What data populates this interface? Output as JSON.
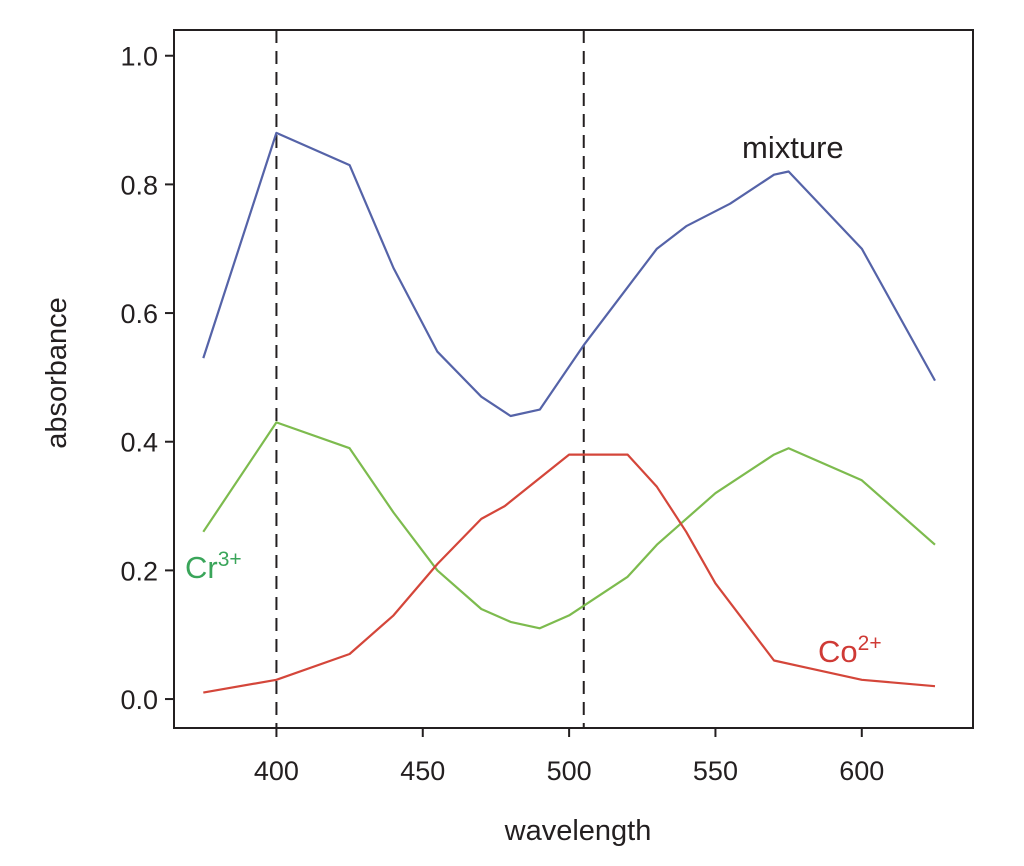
{
  "chart_data": {
    "type": "line",
    "xlabel": "wavelength",
    "ylabel": "absorbance",
    "xlim": [
      365,
      638
    ],
    "ylim": [
      -0.045,
      1.04
    ],
    "x_ticks": [
      400,
      450,
      500,
      550,
      600
    ],
    "y_ticks": [
      0.0,
      0.2,
      0.4,
      0.6,
      0.8,
      1.0
    ],
    "x_tick_labels": [
      "400",
      "450",
      "500",
      "550",
      "600"
    ],
    "y_tick_labels": [
      "0.0",
      "0.2",
      "0.4",
      "0.6",
      "0.8",
      "1.0"
    ],
    "grid": false,
    "vertical_reference_lines": [
      400,
      505
    ],
    "series": [
      {
        "name": "mixture",
        "color": "#5563a8",
        "points": [
          [
            375,
            0.53
          ],
          [
            400,
            0.88
          ],
          [
            425,
            0.83
          ],
          [
            440,
            0.67
          ],
          [
            455,
            0.54
          ],
          [
            470,
            0.47
          ],
          [
            480,
            0.44
          ],
          [
            490,
            0.45
          ],
          [
            505,
            0.55
          ],
          [
            520,
            0.64
          ],
          [
            530,
            0.7
          ],
          [
            540,
            0.735
          ],
          [
            555,
            0.77
          ],
          [
            570,
            0.815
          ],
          [
            575,
            0.82
          ],
          [
            600,
            0.7
          ],
          [
            625,
            0.495
          ]
        ]
      },
      {
        "name": "Cr",
        "label_base": "Cr",
        "label_sup": "3+",
        "color": "#7dbb4e",
        "label_color": "#3aa55a",
        "points": [
          [
            375,
            0.26
          ],
          [
            400,
            0.43
          ],
          [
            425,
            0.39
          ],
          [
            440,
            0.29
          ],
          [
            455,
            0.2
          ],
          [
            470,
            0.14
          ],
          [
            480,
            0.12
          ],
          [
            490,
            0.11
          ],
          [
            500,
            0.13
          ],
          [
            520,
            0.19
          ],
          [
            530,
            0.24
          ],
          [
            550,
            0.32
          ],
          [
            570,
            0.38
          ],
          [
            575,
            0.39
          ],
          [
            600,
            0.34
          ],
          [
            625,
            0.24
          ]
        ]
      },
      {
        "name": "Co",
        "label_base": "Co",
        "label_sup": "2+",
        "color": "#d4463a",
        "label_color": "#cf3a35",
        "points": [
          [
            375,
            0.01
          ],
          [
            400,
            0.03
          ],
          [
            425,
            0.07
          ],
          [
            440,
            0.13
          ],
          [
            455,
            0.21
          ],
          [
            470,
            0.28
          ],
          [
            478,
            0.3
          ],
          [
            500,
            0.38
          ],
          [
            520,
            0.38
          ],
          [
            530,
            0.33
          ],
          [
            540,
            0.26
          ],
          [
            550,
            0.18
          ],
          [
            570,
            0.06
          ],
          [
            580,
            0.05
          ],
          [
            600,
            0.03
          ],
          [
            625,
            0.02
          ]
        ]
      }
    ],
    "annotations": [
      {
        "series": "mixture",
        "text": "mixture"
      },
      {
        "series": "Cr",
        "text": "Cr",
        "sup": "3+"
      },
      {
        "series": "Co",
        "text": "Co",
        "sup": "2+"
      }
    ]
  }
}
